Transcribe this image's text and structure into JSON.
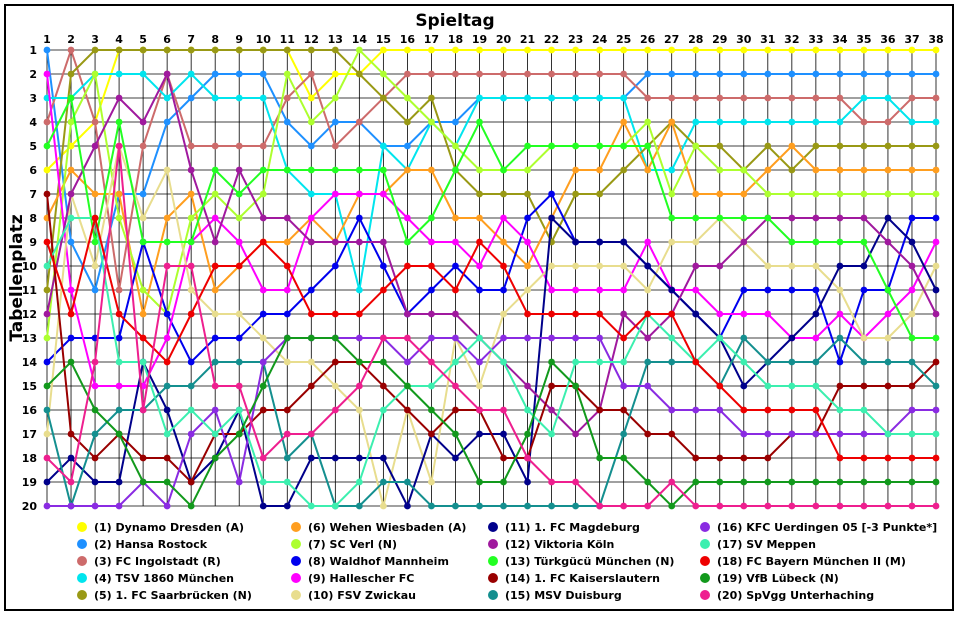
{
  "chart_data": {
    "type": "line",
    "title": "Spieltag",
    "ylabel": "Tabellenplatz",
    "x": [
      1,
      2,
      3,
      4,
      5,
      6,
      7,
      8,
      9,
      10,
      11,
      12,
      13,
      14,
      15,
      16,
      17,
      18,
      19,
      20,
      21,
      22,
      23,
      24,
      25,
      26,
      27,
      28,
      29,
      30,
      31,
      32,
      33,
      34,
      35,
      36,
      37,
      38
    ],
    "ylim": [
      1,
      20
    ],
    "y_reversed": true,
    "grid": true,
    "legend_position": "bottom",
    "series": [
      {
        "name": "(1) Dynamo Dresden (A)",
        "color": "#ffff00",
        "values": [
          6,
          5,
          4,
          1,
          1,
          1,
          1,
          1,
          1,
          1,
          1,
          3,
          2,
          2,
          1,
          1,
          1,
          1,
          1,
          1,
          1,
          1,
          1,
          1,
          1,
          1,
          1,
          1,
          1,
          1,
          1,
          1,
          1,
          1,
          1,
          1,
          1,
          1
        ]
      },
      {
        "name": "(2) Hansa Rostock",
        "color": "#1e90ff",
        "values": [
          1,
          9,
          11,
          7,
          7,
          4,
          3,
          2,
          2,
          2,
          4,
          5,
          4,
          4,
          5,
          5,
          4,
          4,
          3,
          3,
          3,
          3,
          3,
          3,
          3,
          2,
          2,
          2,
          2,
          2,
          2,
          2,
          2,
          2,
          2,
          2,
          2,
          2
        ]
      },
      {
        "name": "(3) FC Ingolstadt (R)",
        "color": "#cd6b6b",
        "values": [
          4,
          1,
          4,
          11,
          5,
          2,
          5,
          5,
          5,
          5,
          3,
          2,
          5,
          4,
          3,
          2,
          2,
          2,
          2,
          2,
          2,
          2,
          2,
          2,
          2,
          3,
          3,
          3,
          3,
          3,
          3,
          3,
          3,
          3,
          4,
          4,
          3,
          3
        ]
      },
      {
        "name": "(4) TSV 1860 München",
        "color": "#00e5ee",
        "values": [
          3,
          3,
          2,
          2,
          2,
          3,
          2,
          3,
          3,
          3,
          6,
          7,
          7,
          11,
          5,
          6,
          4,
          5,
          3,
          3,
          3,
          3,
          3,
          3,
          3,
          6,
          6,
          4,
          4,
          4,
          4,
          4,
          4,
          4,
          3,
          3,
          4,
          4
        ]
      },
      {
        "name": "(5) 1. FC Saarbrücken (N)",
        "color": "#999915",
        "values": [
          11,
          2,
          1,
          1,
          1,
          1,
          1,
          1,
          1,
          1,
          1,
          1,
          1,
          2,
          3,
          4,
          3,
          6,
          7,
          7,
          7,
          9,
          7,
          7,
          6,
          5,
          4,
          5,
          5,
          6,
          5,
          6,
          5,
          5,
          5,
          5,
          5,
          5
        ]
      },
      {
        "name": "(6) Wehen Wiesbaden (A)",
        "color": "#ff9e1f",
        "values": [
          8,
          6,
          7,
          7,
          12,
          8,
          7,
          11,
          10,
          9,
          9,
          8,
          9,
          7,
          7,
          6,
          6,
          8,
          8,
          9,
          10,
          8,
          6,
          6,
          4,
          6,
          4,
          7,
          7,
          7,
          6,
          5,
          6,
          6,
          6,
          6,
          6,
          6
        ]
      },
      {
        "name": "(7) SC Verl (N)",
        "color": "#adff2f",
        "values": [
          13,
          4,
          2,
          8,
          11,
          12,
          8,
          7,
          8,
          7,
          2,
          4,
          3,
          1,
          2,
          3,
          4,
          5,
          6,
          6,
          6,
          5,
          5,
          5,
          5,
          4,
          7,
          5,
          6,
          6,
          7,
          7,
          7,
          7,
          7,
          7,
          7,
          7
        ]
      },
      {
        "name": "(8) Waldhof Mannheim",
        "color": "#0000ee",
        "values": [
          14,
          13,
          13,
          13,
          9,
          12,
          14,
          13,
          13,
          12,
          12,
          11,
          10,
          8,
          10,
          12,
          11,
          10,
          11,
          11,
          8,
          7,
          9,
          9,
          9,
          10,
          11,
          12,
          13,
          11,
          11,
          11,
          11,
          14,
          11,
          11,
          8,
          8
        ]
      },
      {
        "name": "(9) Hallescher FC",
        "color": "#ff00ff",
        "values": [
          2,
          11,
          15,
          15,
          15,
          13,
          9,
          8,
          9,
          11,
          11,
          8,
          7,
          7,
          7,
          8,
          9,
          9,
          10,
          8,
          9,
          11,
          11,
          11,
          11,
          9,
          11,
          11,
          12,
          12,
          12,
          13,
          13,
          12,
          13,
          12,
          11,
          9
        ]
      },
      {
        "name": "(10) FSV Zwickau",
        "color": "#e8dd8e",
        "values": [
          17,
          7,
          10,
          5,
          8,
          6,
          11,
          12,
          12,
          13,
          14,
          14,
          15,
          16,
          20,
          16,
          19,
          13,
          15,
          12,
          11,
          10,
          10,
          10,
          10,
          11,
          9,
          9,
          8,
          9,
          10,
          10,
          10,
          11,
          13,
          13,
          12,
          10
        ]
      },
      {
        "name": "(11) 1. FC Magdeburg",
        "color": "#00008b",
        "values": [
          19,
          18,
          19,
          19,
          14,
          16,
          19,
          18,
          16,
          20,
          20,
          18,
          18,
          18,
          18,
          20,
          17,
          18,
          17,
          17,
          19,
          8,
          9,
          9,
          9,
          10,
          11,
          12,
          13,
          15,
          14,
          13,
          12,
          10,
          10,
          8,
          9,
          11
        ]
      },
      {
        "name": "(12) Viktoria Köln",
        "color": "#a0199e",
        "values": [
          12,
          7,
          5,
          3,
          4,
          2,
          6,
          9,
          6,
          8,
          8,
          9,
          9,
          9,
          9,
          12,
          12,
          12,
          13,
          14,
          15,
          16,
          17,
          16,
          12,
          13,
          12,
          10,
          10,
          9,
          8,
          8,
          8,
          8,
          8,
          9,
          10,
          12
        ]
      },
      {
        "name": "(13) Türkgücü München (N)",
        "color": "#22ff22",
        "values": [
          5,
          3,
          9,
          4,
          9,
          9,
          9,
          6,
          7,
          6,
          6,
          6,
          6,
          6,
          6,
          9,
          8,
          6,
          4,
          6,
          5,
          5,
          5,
          5,
          5,
          5,
          8,
          8,
          8,
          8,
          8,
          9,
          9,
          9,
          9,
          11,
          13,
          13
        ]
      },
      {
        "name": "(14) 1. FC Kaiserslautern",
        "color": "#990000",
        "values": [
          7,
          17,
          18,
          17,
          18,
          18,
          19,
          17,
          17,
          16,
          16,
          15,
          14,
          14,
          15,
          16,
          17,
          16,
          16,
          18,
          18,
          15,
          15,
          16,
          16,
          17,
          17,
          18,
          18,
          18,
          18,
          17,
          17,
          15,
          15,
          15,
          15,
          14
        ]
      },
      {
        "name": "(15) MSV Duisburg",
        "color": "#148f8f",
        "values": [
          16,
          20,
          17,
          16,
          16,
          15,
          15,
          14,
          14,
          14,
          18,
          17,
          20,
          20,
          19,
          19,
          20,
          20,
          20,
          20,
          20,
          20,
          20,
          20,
          17,
          14,
          14,
          14,
          15,
          13,
          14,
          14,
          14,
          13,
          14,
          14,
          14,
          15
        ]
      },
      {
        "name": "(16) KFC Uerdingen 05 [-3 Punkte*]",
        "color": "#8a2be2",
        "values": [
          20,
          20,
          20,
          20,
          19,
          20,
          17,
          16,
          19,
          14,
          13,
          13,
          13,
          13,
          13,
          14,
          13,
          13,
          14,
          13,
          13,
          13,
          13,
          13,
          15,
          15,
          16,
          16,
          16,
          17,
          17,
          17,
          17,
          17,
          17,
          17,
          16,
          16
        ]
      },
      {
        "name": "(17) SV Meppen",
        "color": "#3cefaf",
        "values": [
          10,
          8,
          8,
          14,
          14,
          17,
          16,
          17,
          16,
          19,
          19,
          20,
          20,
          19,
          16,
          15,
          15,
          14,
          13,
          14,
          16,
          17,
          14,
          14,
          14,
          12,
          13,
          14,
          13,
          14,
          15,
          15,
          15,
          16,
          16,
          17,
          17,
          17
        ]
      },
      {
        "name": "(18) FC Bayern München II (M)",
        "color": "#ee0000",
        "values": [
          9,
          12,
          8,
          12,
          13,
          14,
          12,
          10,
          10,
          9,
          10,
          12,
          12,
          12,
          11,
          10,
          10,
          11,
          9,
          10,
          12,
          12,
          12,
          12,
          13,
          12,
          12,
          14,
          15,
          16,
          16,
          16,
          16,
          18,
          18,
          18,
          18,
          18
        ]
      },
      {
        "name": "(19) VfB Lübeck (N)",
        "color": "#12991c",
        "values": [
          15,
          14,
          16,
          17,
          19,
          19,
          20,
          18,
          17,
          15,
          13,
          13,
          13,
          14,
          14,
          15,
          16,
          17,
          19,
          19,
          17,
          14,
          15,
          18,
          18,
          19,
          20,
          19,
          19,
          19,
          19,
          19,
          19,
          19,
          19,
          19,
          19,
          19
        ]
      },
      {
        "name": "(20) SpVgg Unterhaching",
        "color": "#ee1f8f",
        "values": [
          18,
          19,
          14,
          5,
          16,
          10,
          10,
          15,
          15,
          18,
          17,
          17,
          16,
          15,
          13,
          13,
          14,
          15,
          16,
          16,
          18,
          19,
          19,
          20,
          20,
          20,
          19,
          20,
          20,
          20,
          20,
          20,
          20,
          20,
          20,
          20,
          20,
          20
        ]
      }
    ]
  }
}
